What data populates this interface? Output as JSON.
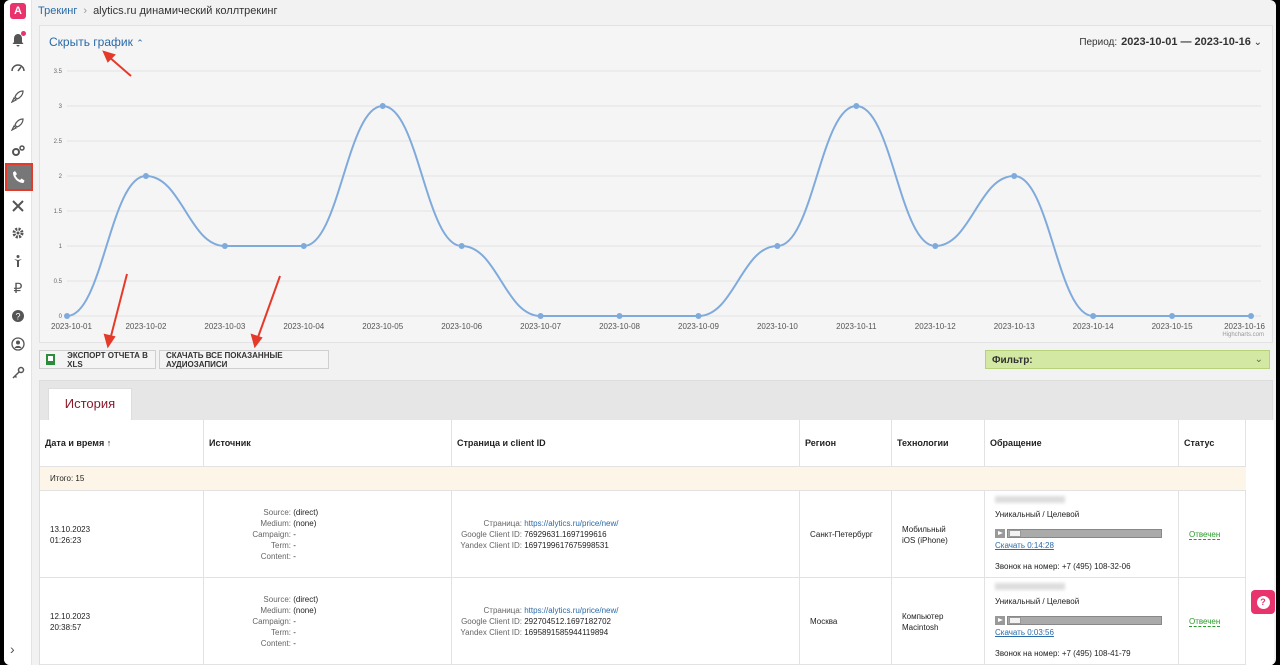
{
  "app": {
    "logo": "A"
  },
  "breadcrumb": {
    "root": "Трекинг",
    "current": "alytics.ru динамический коллтрекинг"
  },
  "chart_header": {
    "hide_graph": "Скрыть график",
    "period_label": "Период:",
    "period_value": "2023-10-01 — 2023-10-16"
  },
  "chart_data": {
    "type": "line",
    "x": [
      "2023-10-01",
      "2023-10-02",
      "2023-10-03",
      "2023-10-04",
      "2023-10-05",
      "2023-10-06",
      "2023-10-07",
      "2023-10-08",
      "2023-10-09",
      "2023-10-10",
      "2023-10-11",
      "2023-10-12",
      "2023-10-13",
      "2023-10-14",
      "2023-10-15",
      "2023-10-16"
    ],
    "series": [
      {
        "values": [
          0,
          2,
          1,
          1,
          3,
          1,
          0,
          0,
          0,
          1,
          3,
          1,
          2,
          0,
          0,
          0
        ]
      }
    ],
    "y_ticks": [
      "0",
      "0.5",
      "1",
      "1.5",
      "2",
      "2.5",
      "3",
      "3.5"
    ],
    "ylim": [
      0,
      3.5
    ],
    "grid": true,
    "color": "#7faadc",
    "credits": "Highcharts.com"
  },
  "toolbar": {
    "export_xls": "Экспорт отчета в XLS",
    "download_audio": "Скачать все показанные аудиозаписи",
    "filter_label": "Фильтр:"
  },
  "tabs": [
    {
      "label": "История"
    }
  ],
  "table": {
    "headers": [
      "Дата и время ↑",
      "Источник",
      "Страница и client ID",
      "Регион",
      "Технологии",
      "Обращение",
      "Статус"
    ],
    "total": "Итого: 15",
    "labels": {
      "source": "Source:",
      "medium": "Medium:",
      "campaign": "Campaign:",
      "term": "Term:",
      "content": "Content:",
      "page": "Страница:",
      "gcid": "Google Client ID:",
      "ycid": "Yandex Client ID:"
    },
    "rows": [
      {
        "date": "13.10.2023",
        "time": "01:26:23",
        "source": "(direct)",
        "medium": "(none)",
        "campaign": "-",
        "term": "-",
        "content": "-",
        "page": "https://alytics.ru/price/new/",
        "gcid": "76929631.1697199616",
        "ycid": "1697199617675998531",
        "region": "Санкт-Петербург",
        "tech1": "Мобильный",
        "tech2": "iOS (iPhone)",
        "type": "Уникальный / Целевой",
        "download": "Скачать 0:14:28",
        "number": "Звонок на номер: +7 (495) 108-32-06",
        "status": "Отвечен"
      },
      {
        "date": "12.10.2023",
        "time": "20:38:57",
        "source": "(direct)",
        "medium": "(none)",
        "campaign": "-",
        "term": "-",
        "content": "-",
        "page": "https://alytics.ru/price/new/",
        "gcid": "292704512.1697182702",
        "ycid": "1695891585944119894",
        "region": "Москва",
        "tech1": "Компьютер",
        "tech2": "Macintosh",
        "type": "Уникальный / Целевой",
        "download": "Скачать 0:03:56",
        "number": "Звонок на номер: +7 (495) 108-41-79",
        "status": "Отвечен"
      }
    ]
  },
  "help": {
    "label": "?"
  }
}
